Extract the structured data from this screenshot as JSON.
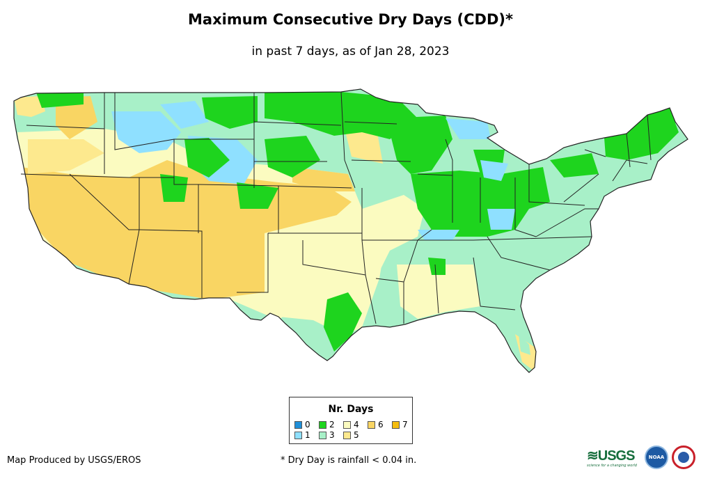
{
  "title": "Maximum Consecutive Dry Days (CDD)*",
  "subtitle": "in past 7 days, as of Jan 28, 2023",
  "legend": {
    "title": "Nr. Days",
    "items": [
      {
        "label": "0",
        "color": "#1f8fd8"
      },
      {
        "label": "1",
        "color": "#8fe0ff"
      },
      {
        "label": "2",
        "color": "#1ed41e"
      },
      {
        "label": "3",
        "color": "#a8f0c8"
      },
      {
        "label": "4",
        "color": "#fbfbc0"
      },
      {
        "label": "5",
        "color": "#fde98e"
      },
      {
        "label": "6",
        "color": "#f9d563"
      },
      {
        "label": "7",
        "color": "#f5bd0e"
      }
    ]
  },
  "footer": {
    "credit": "Map Produced by USGS/EROS",
    "footnote": "* Dry Day is rainfall < 0.04 in.",
    "usgs_logo": "USGS",
    "usgs_tagline": "science for a changing world",
    "noaa_logo": "NOAA"
  },
  "map": {
    "region": "Contiguous United States",
    "icons": [
      "usgs-logo",
      "noaa-logo",
      "nws-logo"
    ]
  }
}
